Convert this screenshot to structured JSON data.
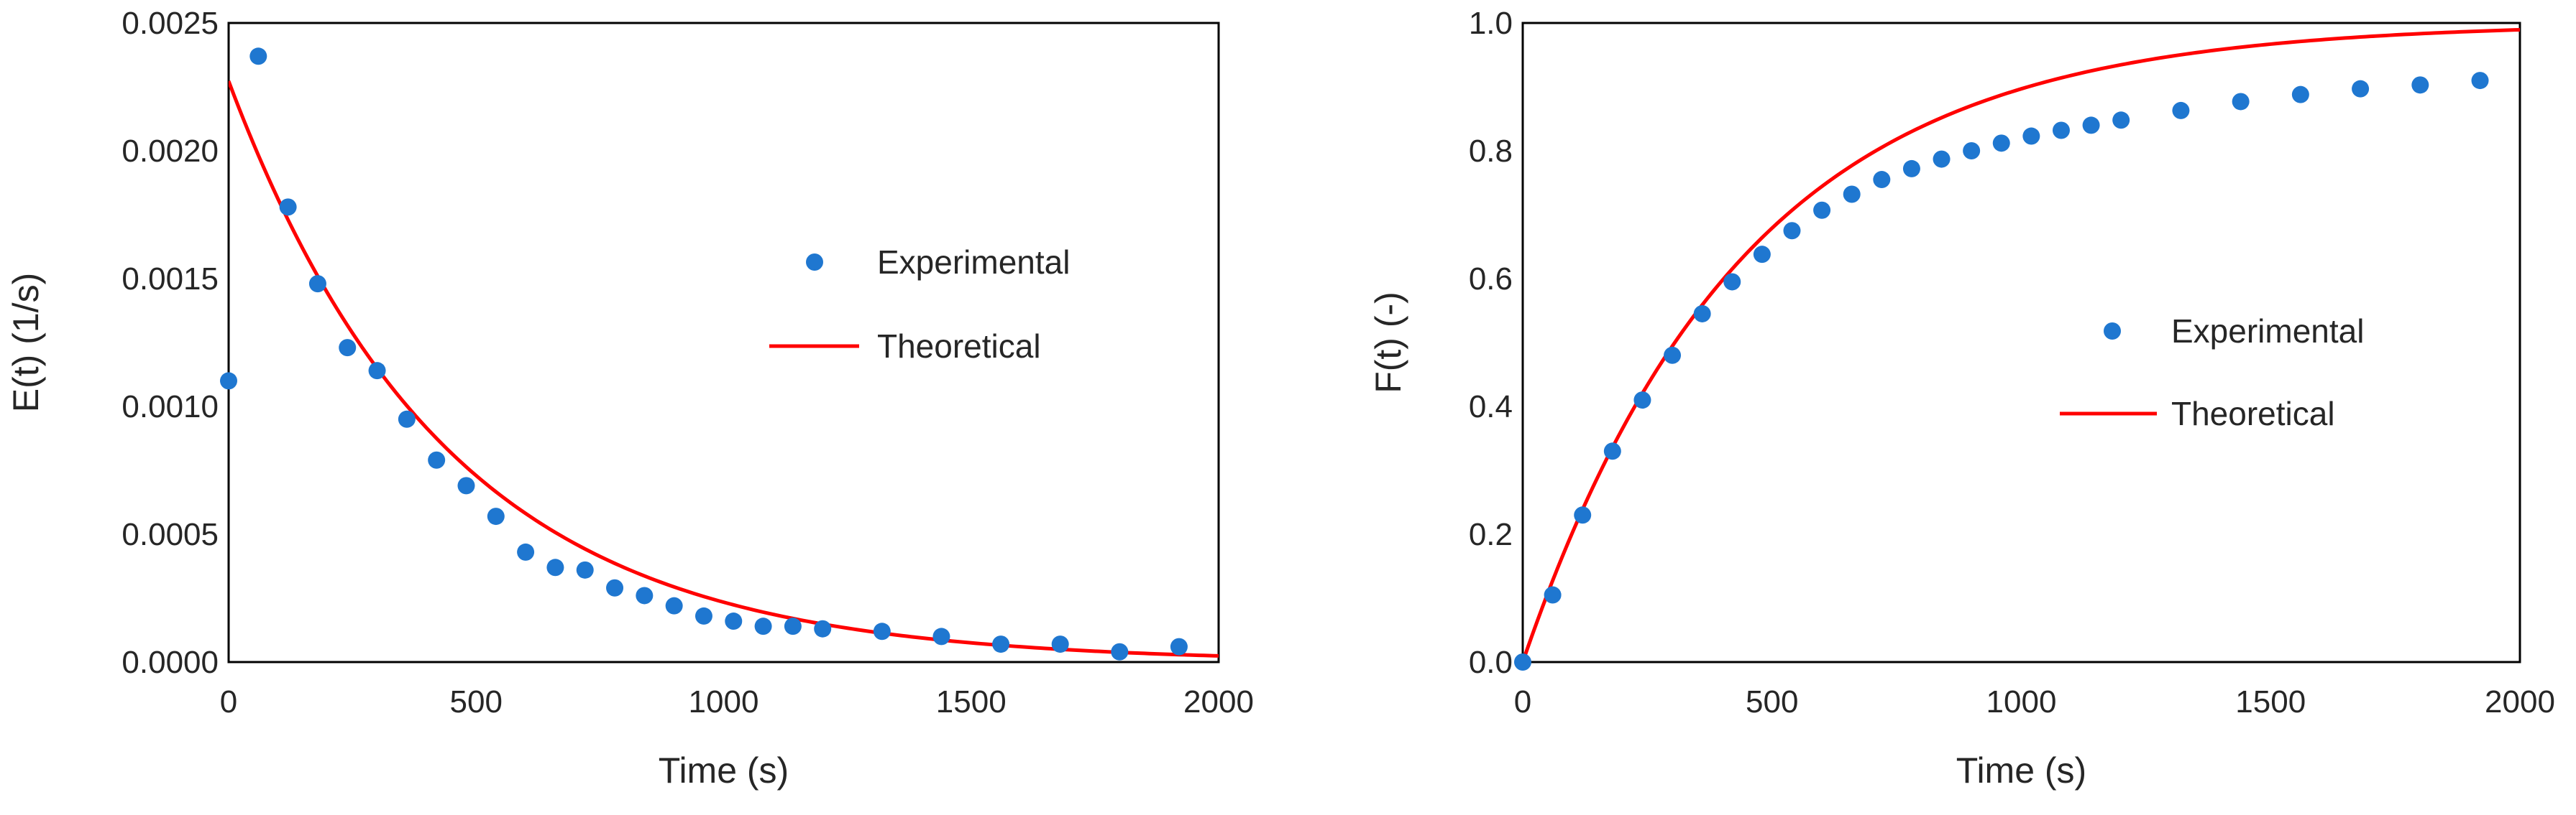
{
  "chart_data": [
    {
      "type": "scatter",
      "title": "",
      "xlabel": "Time (s)",
      "ylabel": "E(t) (1/s)",
      "xlim": [
        0,
        2000
      ],
      "ylim": [
        0,
        0.0025
      ],
      "x_ticks": [
        0,
        500,
        1000,
        1500,
        2000
      ],
      "x_tick_labels": [
        "0",
        "500",
        "1000",
        "1500",
        "2000"
      ],
      "y_ticks": [
        0,
        0.0005,
        0.001,
        0.0015,
        0.002,
        0.0025
      ],
      "y_tick_labels": [
        "0.0000",
        "0.0005",
        "0.0010",
        "0.0015",
        "0.0020",
        "0.0025"
      ],
      "grid": false,
      "legend_position": "center-right",
      "series": [
        {
          "name": "Experimental",
          "kind": "scatter",
          "color": "#1f77d0",
          "x": [
            0,
            60,
            120,
            180,
            240,
            300,
            360,
            420,
            480,
            540,
            600,
            660,
            720,
            780,
            840,
            900,
            960,
            1020,
            1080,
            1140,
            1200,
            1320,
            1440,
            1560,
            1680,
            1800,
            1920
          ],
          "y": [
            0.0011,
            0.00237,
            0.00178,
            0.00148,
            0.00123,
            0.00114,
            0.00095,
            0.00079,
            0.00069,
            0.00057,
            0.00043,
            0.00037,
            0.00036,
            0.00029,
            0.00026,
            0.00022,
            0.00018,
            0.00016,
            0.00014,
            0.00014,
            0.00013,
            0.00012,
            0.0001,
            7e-05,
            7e-05,
            4e-05,
            6e-05
          ]
        },
        {
          "name": "Theoretical",
          "kind": "line",
          "color": "#ff0000",
          "function": "exp_decay",
          "tau": 440,
          "x_start": 0,
          "x_end": 2000
        }
      ]
    },
    {
      "type": "scatter",
      "title": "",
      "xlabel": "Time (s)",
      "ylabel": "F(t) (-)",
      "xlim": [
        0,
        2000
      ],
      "ylim": [
        0,
        1
      ],
      "x_ticks": [
        0,
        500,
        1000,
        1500,
        2000
      ],
      "x_tick_labels": [
        "0",
        "500",
        "1000",
        "1500",
        "2000"
      ],
      "y_ticks": [
        0,
        0.2,
        0.4,
        0.6,
        0.8,
        1.0
      ],
      "y_tick_labels": [
        "0.0",
        "0.2",
        "0.4",
        "0.6",
        "0.8",
        "1.0"
      ],
      "grid": false,
      "legend_position": "center-right",
      "series": [
        {
          "name": "Experimental",
          "kind": "scatter",
          "color": "#1f77d0",
          "x": [
            0,
            60,
            120,
            180,
            240,
            300,
            360,
            420,
            480,
            540,
            600,
            660,
            720,
            780,
            840,
            900,
            960,
            1020,
            1080,
            1140,
            1200,
            1320,
            1440,
            1560,
            1680,
            1800,
            1920
          ],
          "y": [
            0.0,
            0.105,
            0.23,
            0.33,
            0.41,
            0.48,
            0.545,
            0.595,
            0.638,
            0.675,
            0.707,
            0.732,
            0.755,
            0.772,
            0.787,
            0.8,
            0.812,
            0.823,
            0.832,
            0.84,
            0.848,
            0.863,
            0.877,
            0.888,
            0.897,
            0.903,
            0.91
          ]
        },
        {
          "name": "Theoretical",
          "kind": "line",
          "color": "#ff0000",
          "function": "exp_cdf",
          "tau": 440,
          "x_start": 0,
          "x_end": 2000
        }
      ]
    }
  ]
}
